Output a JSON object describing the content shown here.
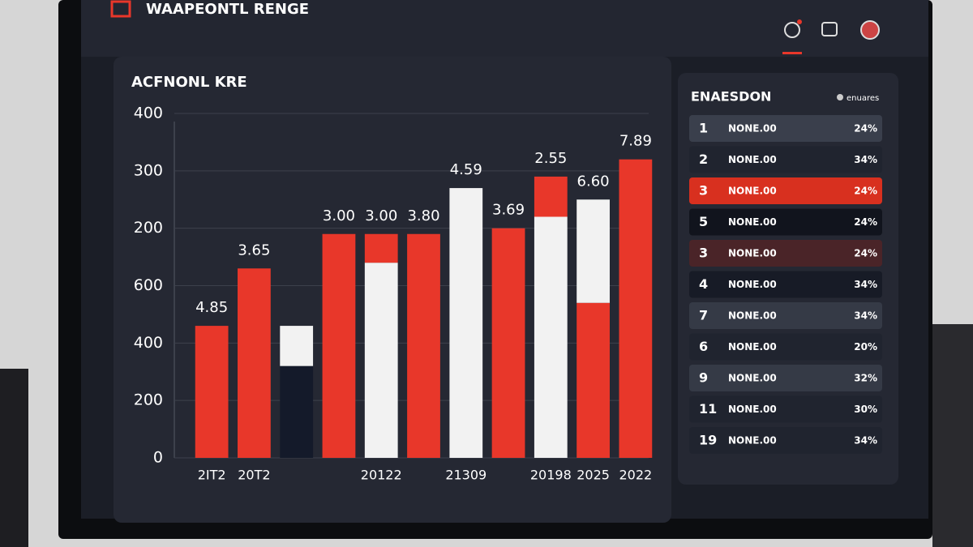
{
  "header": {
    "title": "WAAPEONTL RENGE"
  },
  "chart_data": {
    "type": "bar",
    "title": "ACFNONL KRE",
    "categories": [
      "2IT2",
      "20T2",
      null,
      null,
      "20122",
      null,
      "21309",
      null,
      "20198",
      "2025",
      "2022"
    ],
    "annotations": [
      "4.85",
      "3.65",
      null,
      "3.00",
      "3.00",
      "3.80",
      "4.59",
      "3.69",
      "2.55",
      "6.60",
      "7.89"
    ],
    "stacks": [
      [
        {
          "color": "#e8372a",
          "value": 230
        }
      ],
      [
        {
          "color": "#e8372a",
          "value": 330
        }
      ],
      [
        {
          "color": "#141a2a",
          "value": 160
        },
        {
          "color": "#f2f2f2",
          "value": 70
        }
      ],
      [
        {
          "color": "#e8372a",
          "value": 390
        }
      ],
      [
        {
          "color": "#f2f2f2",
          "value": 340
        },
        {
          "color": "#e8372a",
          "value": 50
        }
      ],
      [
        {
          "color": "#e8372a",
          "value": 390
        }
      ],
      [
        {
          "color": "#f2f2f2",
          "value": 470
        }
      ],
      [
        {
          "color": "#e8372a",
          "value": 400
        }
      ],
      [
        {
          "color": "#f2f2f2",
          "value": 420
        },
        {
          "color": "#e8372a",
          "value": 70
        }
      ],
      [
        {
          "color": "#e8372a",
          "value": 270
        },
        {
          "color": "#f2f2f2",
          "value": 180
        }
      ],
      [
        {
          "color": "#e8372a",
          "value": 520
        }
      ]
    ],
    "ylim": [
      0,
      600
    ],
    "yticks": [
      0,
      {
        "value": 100,
        "label": "200"
      },
      {
        "value": 200,
        "label": "400"
      },
      {
        "value": 300,
        "label": "600"
      },
      {
        "value": 400,
        "label": "200"
      },
      {
        "value": 500,
        "label": "300"
      },
      {
        "value": 600,
        "label": "400"
      }
    ],
    "grid": true
  },
  "ranking": {
    "title": "ENAESDON",
    "badge": "enuares",
    "rows": [
      {
        "rank": "1",
        "name": "NONE.00",
        "pct": "24%",
        "bg": "#3a3f4c",
        "rank_color": "#ffffff",
        "pct_color": "#ffffff"
      },
      {
        "rank": "2",
        "name": "NONE.00",
        "pct": "34%",
        "bg": "#20242f",
        "rank_color": "#ffffff",
        "pct_color": "#ffffff"
      },
      {
        "rank": "3",
        "name": "NONE.00",
        "pct": "24%",
        "bg": "#d8301f",
        "rank_color": "#ffffff",
        "pct_color": "#ffffff"
      },
      {
        "rank": "5",
        "name": "NONE.00",
        "pct": "24%",
        "bg": "#11141d",
        "rank_color": "#ffffff",
        "pct_color": "#e8372a"
      },
      {
        "rank": "3",
        "name": "NONE.00",
        "pct": "24%",
        "bg": "#4a2428",
        "rank_color": "#ffffff",
        "pct_color": "#ffffff"
      },
      {
        "rank": "4",
        "name": "NONE.00",
        "pct": "34%",
        "bg": "#171b26",
        "rank_color": "#ffffff",
        "pct_color": "#e8372a"
      },
      {
        "rank": "7",
        "name": "NONE.00",
        "pct": "34%",
        "bg": "#353a46",
        "rank_color": "#e8372a",
        "pct_color": "#ffffff"
      },
      {
        "rank": "6",
        "name": "NONE.00",
        "pct": "20%",
        "bg": "#20242f",
        "rank_color": "#e8372a",
        "pct_color": "#ffffff"
      },
      {
        "rank": "9",
        "name": "NONE.00",
        "pct": "32%",
        "bg": "#353a46",
        "rank_color": "#ffffff",
        "pct_color": "#ffffff"
      },
      {
        "rank": "11",
        "name": "NONE.00",
        "pct": "30%",
        "bg": "#20242f",
        "rank_color": "#ffffff",
        "pct_color": "#ffffff"
      },
      {
        "rank": "19",
        "name": "NONE.00",
        "pct": "34%",
        "bg": "#20242f",
        "rank_color": "#ffffff",
        "pct_color": "#ffffff"
      }
    ]
  }
}
